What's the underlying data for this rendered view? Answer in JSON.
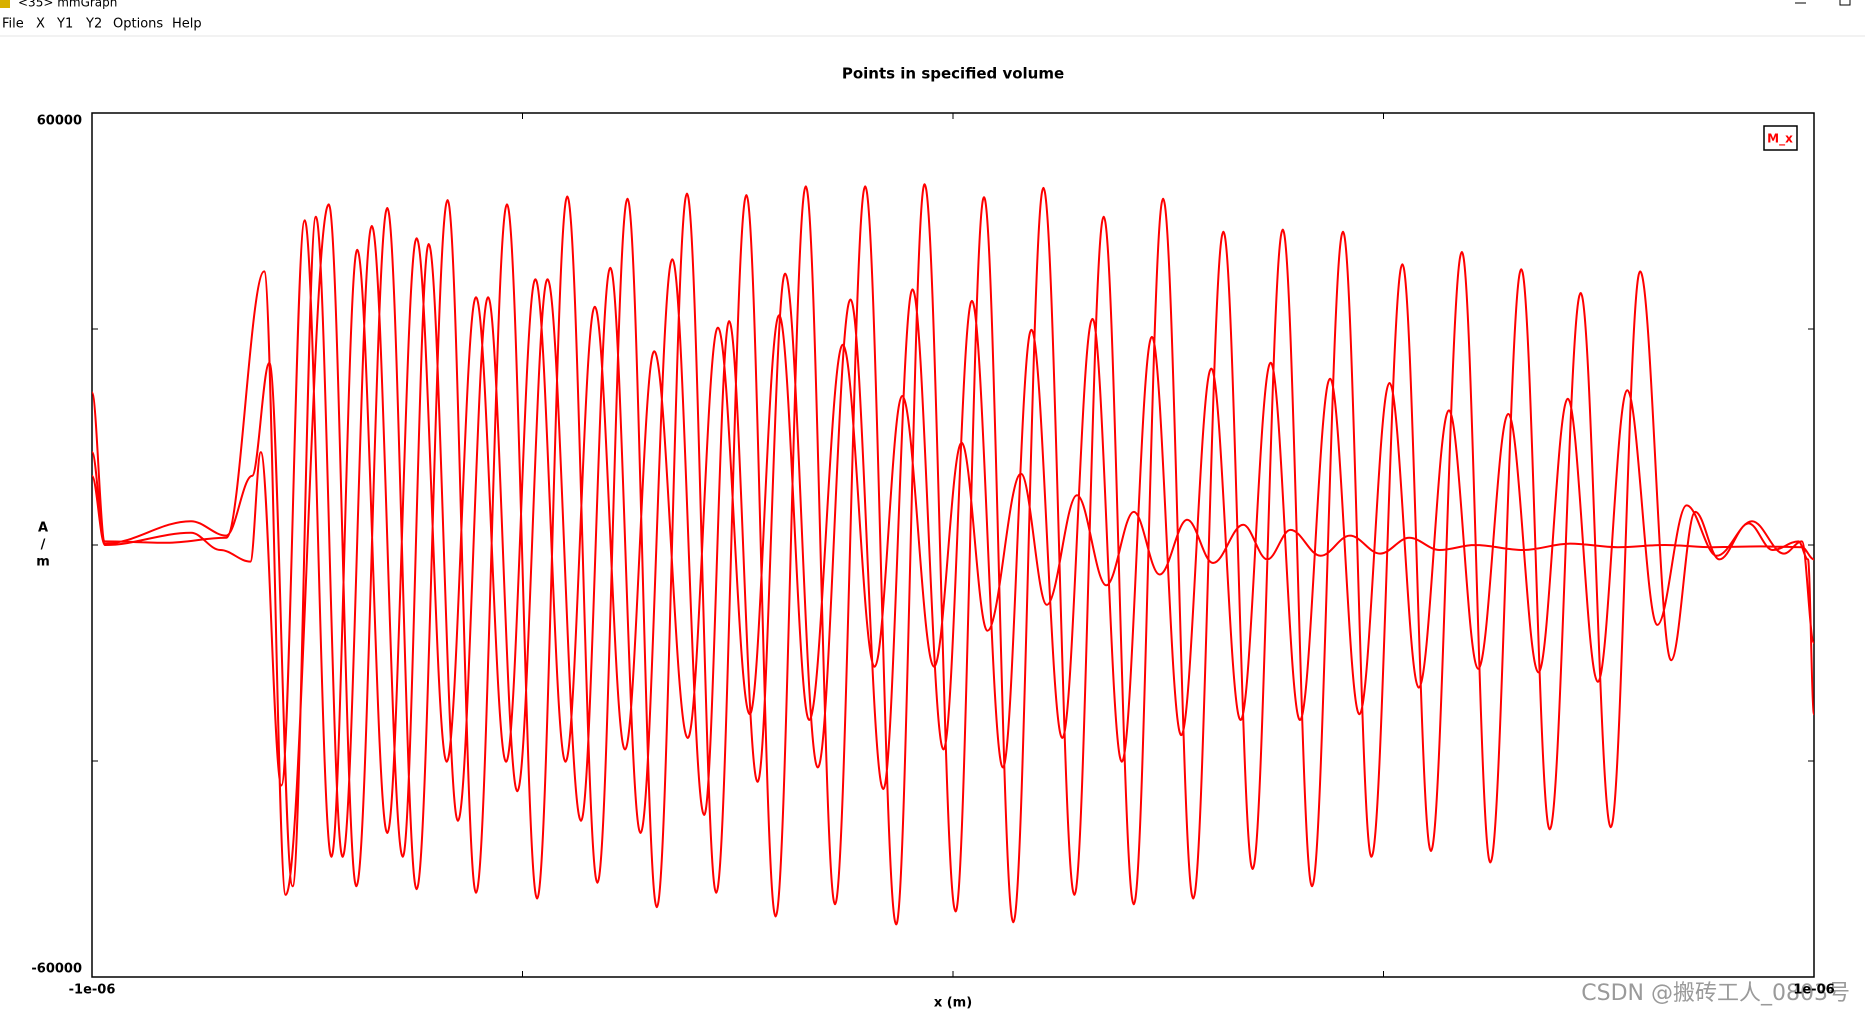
{
  "window": {
    "title": "<35> mmGraph"
  },
  "menu": [
    "File",
    "X",
    "Y1",
    "Y2",
    "Options",
    "Help"
  ],
  "watermark": "CSDN @搬砖工人_0803号",
  "chart_data": {
    "type": "line",
    "title": "Points in specified volume",
    "xlabel": "x (m)",
    "ylabel": [
      "A",
      "/",
      "m"
    ],
    "xlim": [
      -1e-06,
      1e-06
    ],
    "xticks": [
      {
        "value": -1e-06,
        "label": "-1e-06"
      },
      {
        "value": -5e-07,
        "label": null
      },
      {
        "value": 0,
        "label": null
      },
      {
        "value": 5e-07,
        "label": null
      },
      {
        "value": 1e-06,
        "label": "1e-06"
      }
    ],
    "ylim": [
      -60000,
      60000
    ],
    "yticks": [
      {
        "value": -60000,
        "label": "-60000"
      },
      {
        "value": -30000,
        "label": null
      },
      {
        "value": 0,
        "label": null
      },
      {
        "value": 30000,
        "label": null
      },
      {
        "value": 60000,
        "label": "60000"
      }
    ],
    "legend": "upper right",
    "x": [
      -1e-06,
      -9.85e-07,
      -9.13e-07,
      -8.44e-07,
      -8e-07,
      -7.75e-07,
      -7.25e-07,
      -6.93e-07,
      -6.57e-07,
      -6.23e-07,
      -5.87e-07,
      -5.54e-07,
      -5.18e-07,
      -4.83e-07,
      -4.48e-07,
      -4.13e-07,
      -3.78e-07,
      -3.44e-07,
      -3.09e-07,
      -2.75e-07,
      -2.4e-07,
      -2.06e-07,
      -1.71e-07,
      -1.37e-07,
      -1.02e-07,
      -6.6e-08,
      -3.3e-08,
      3e-09,
      3.6e-08,
      7e-08,
      1.05e-07,
      1.41e-07,
      1.75e-07,
      2.1e-07,
      2.44e-07,
      2.79e-07,
      3.14e-07,
      3.48e-07,
      3.83e-07,
      4.17e-07,
      4.53e-07,
      4.86e-07,
      5.22e-07,
      5.55e-07,
      5.91e-07,
      6.24e-07,
      6.6e-07,
      6.93e-07,
      7.29e-07,
      7.64e-07,
      7.98e-07,
      8.34e-07,
      8.62e-07,
      8.9e-07,
      9.24e-07,
      9.52e-07,
      9.82e-07,
      9.93e-07,
      1e-06,
      null,
      -1e-06,
      -9.85e-07,
      -8.85e-07,
      -8.44e-07,
      -8.14e-07,
      -7.94e-07,
      -7.67e-07,
      -7.4e-07,
      -7.09e-07,
      -6.75e-07,
      -6.39e-07,
      -6.09e-07,
      -5.75e-07,
      -5.4e-07,
      -5.06e-07,
      -4.71e-07,
      -4.32e-07,
      -3.98e-07,
      -3.63e-07,
      -3.26e-07,
      -2.89e-07,
      -2.6e-07,
      -2.27e-07,
      -1.95e-07,
      -1.57e-07,
      -1.19e-07,
      -8.1e-08,
      -4.7e-08,
      -1.1e-08,
      2.2e-08,
      5.8e-08,
      9.1e-08,
      1.27e-07,
      1.62e-07,
      1.96e-07,
      2.31e-07,
      2.65e-07,
      3e-07,
      3.34e-07,
      3.69e-07,
      4.03e-07,
      4.38e-07,
      4.72e-07,
      5.07e-07,
      5.41e-07,
      5.76e-07,
      6.1e-07,
      6.45e-07,
      6.8e-07,
      7.14e-07,
      7.49e-07,
      7.83e-07,
      8.18e-07,
      8.52e-07,
      8.87e-07,
      9.28e-07,
      9.65e-07,
      9.86e-07,
      1e-06,
      null,
      -1e-06,
      -9.85e-07,
      -8.85e-07,
      -8.51e-07,
      -8.16e-07,
      -8.04e-07,
      -7.8e-07,
      -7.53e-07,
      -7.22e-07,
      -6.92e-07,
      -6.57e-07,
      -6.23e-07,
      -5.88e-07,
      -5.54e-07,
      -5.19e-07,
      -4.85e-07,
      -4.5e-07,
      -4.16e-07,
      -3.81e-07,
      -3.47e-07,
      -3.08e-07,
      -2.73e-07,
      -2.36e-07,
      -2.02e-07,
      -1.67e-07,
      -1.28e-07,
      -9.1e-08,
      -5.9e-08,
      -2.2e-08,
      1e-08,
      4e-08,
      7.9e-08,
      1.09e-07,
      1.44e-07,
      1.78e-07,
      2.1e-07,
      2.4e-07,
      2.72e-07,
      3.02e-07,
      3.37e-07,
      3.65e-07,
      3.92e-07,
      4.27e-07,
      4.61e-07,
      4.96e-07,
      5.3e-07,
      5.65e-07,
      6.06e-07,
      6.62e-07,
      7.17e-07,
      7.72e-07,
      8.27e-07,
      8.83e-07,
      9.38e-07,
      9.86e-07,
      1e-06
    ],
    "series": [
      {
        "name": "M_x",
        "color": "#ff0000",
        "values": [
          21200,
          500,
          300,
          1000,
          38000,
          -48600,
          47300,
          -47400,
          46800,
          -47800,
          47900,
          -48300,
          47300,
          -49100,
          48400,
          -46900,
          48100,
          -50300,
          48800,
          -48300,
          48600,
          -51600,
          49800,
          -49900,
          49800,
          -52700,
          50100,
          -50900,
          48300,
          -52400,
          49600,
          -48600,
          45600,
          -49900,
          48100,
          -49100,
          43500,
          -45000,
          43800,
          -47400,
          43500,
          -43300,
          39000,
          -42500,
          40700,
          -44100,
          38300,
          -39500,
          35000,
          -39200,
          38000,
          -16000,
          4600,
          -2000,
          3000,
          -700,
          500,
          -2000,
          -23500,
          null,
          12900,
          200,
          3300,
          1300,
          9600,
          25300,
          -47400,
          45600,
          -43300,
          44300,
          -43300,
          41800,
          -38300,
          34400,
          -34200,
          36900,
          -38300,
          38500,
          -40000,
          39700,
          -37500,
          31100,
          -32900,
          37700,
          -30900,
          34100,
          -33900,
          35500,
          -28400,
          33900,
          -30900,
          29900,
          -26800,
          31400,
          -30100,
          28900,
          -26400,
          24500,
          -24300,
          25300,
          -24300,
          23100,
          -23500,
          22500,
          -19800,
          18700,
          -17200,
          18200,
          -17700,
          20300,
          -19000,
          21500,
          -11100,
          5500,
          -1500,
          3300,
          -1200,
          500,
          -13600,
          null,
          9600,
          0,
          1700,
          -700,
          -2300,
          12900,
          -33400,
          45100,
          -43300,
          41000,
          -40000,
          42600,
          -30100,
          34400,
          -30100,
          36900,
          -30100,
          33100,
          -28400,
          26900,
          -26800,
          30200,
          -23500,
          31900,
          -24300,
          27800,
          -16900,
          20700,
          -16900,
          14200,
          -11900,
          9900,
          -8300,
          6900,
          -5600,
          4600,
          -4100,
          3500,
          -2500,
          2800,
          -2000,
          2100,
          -1500,
          1300,
          -1200,
          1000,
          -700,
          0,
          -700,
          200,
          -300,
          0,
          -300,
          -200,
          -300,
          -2000
        ]
      }
    ]
  }
}
